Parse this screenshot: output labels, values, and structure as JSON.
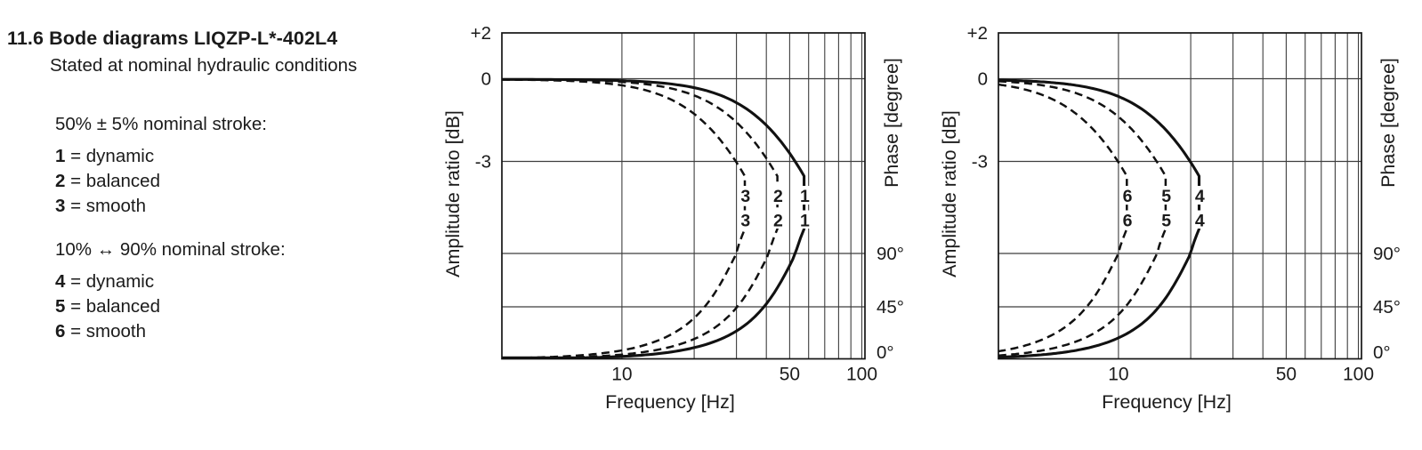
{
  "page": {
    "title": "11.6 Bode diagrams LIQZP-L*-402L4",
    "subtitle": "Stated at nominal hydraulic conditions"
  },
  "legend": {
    "groups": [
      {
        "heading": "50% ± 5% nominal stroke:",
        "items": [
          {
            "num": "1",
            "desc": "= dynamic"
          },
          {
            "num": "2",
            "desc": "= balanced"
          },
          {
            "num": "3",
            "desc": "= smooth"
          }
        ]
      },
      {
        "heading": "10% ↔ 90% nominal stroke:",
        "items": [
          {
            "num": "4",
            "desc": "= dynamic"
          },
          {
            "num": "5",
            "desc": "= balanced"
          },
          {
            "num": "6",
            "desc": "= smooth"
          }
        ]
      }
    ]
  },
  "chart_data": [
    {
      "type": "line",
      "title": "Bode diagram, 50% ± 5% nominal stroke",
      "x_axis": {
        "label": "Frequency [Hz]",
        "scale": "log",
        "range_hz": [
          3.16,
          103
        ],
        "tick_values_hz": [
          10,
          50,
          100
        ],
        "tick_labels": [
          "10",
          "50",
          "100"
        ],
        "gridlines_hz": [
          10,
          20,
          30,
          40,
          50,
          60,
          70,
          80,
          90,
          100
        ]
      },
      "left_axis": {
        "label": "Amplitude ratio [dB]",
        "tick_values_db": [
          2,
          0,
          -3
        ],
        "tick_labels": [
          "+2",
          "0",
          "-3"
        ]
      },
      "right_axis": {
        "label": "Phase [degree]",
        "tick_values_deg": [
          90,
          45,
          0
        ],
        "tick_labels": [
          "90°",
          "45°",
          "0°"
        ]
      },
      "series": [
        {
          "label": "1",
          "line_style": "solid",
          "corner_frequency_hz": 53
        },
        {
          "label": "2",
          "line_style": "dashed",
          "corner_frequency_hz": 41
        },
        {
          "label": "3",
          "line_style": "dashed",
          "corner_frequency_hz": 30
        }
      ]
    },
    {
      "type": "line",
      "title": "Bode diagram, 10% ↔ 90% nominal stroke",
      "x_axis": {
        "label": "Frequency [Hz]",
        "scale": "log",
        "range_hz": [
          3.16,
          103
        ],
        "tick_values_hz": [
          10,
          50,
          100
        ],
        "tick_labels": [
          "10",
          "50",
          "100"
        ],
        "gridlines_hz": [
          10,
          20,
          30,
          40,
          50,
          60,
          70,
          80,
          90,
          100
        ]
      },
      "left_axis": {
        "label": "Amplitude ratio [dB]",
        "tick_values_db": [
          2,
          0,
          -3
        ],
        "tick_labels": [
          "+2",
          "0",
          "-3"
        ]
      },
      "right_axis": {
        "label": "Phase [degree]",
        "tick_values_deg": [
          90,
          45,
          0
        ],
        "tick_labels": [
          "90°",
          "45°",
          "0°"
        ]
      },
      "series": [
        {
          "label": "4",
          "line_style": "solid",
          "corner_frequency_hz": 20
        },
        {
          "label": "5",
          "line_style": "dashed",
          "corner_frequency_hz": 14.5
        },
        {
          "label": "6",
          "line_style": "dashed",
          "corner_frequency_hz": 10
        }
      ]
    }
  ],
  "colors": {
    "ink": "#1b1b1b",
    "grid": "#3e3e3e",
    "curve": "#111111",
    "background": "#ffffff"
  }
}
